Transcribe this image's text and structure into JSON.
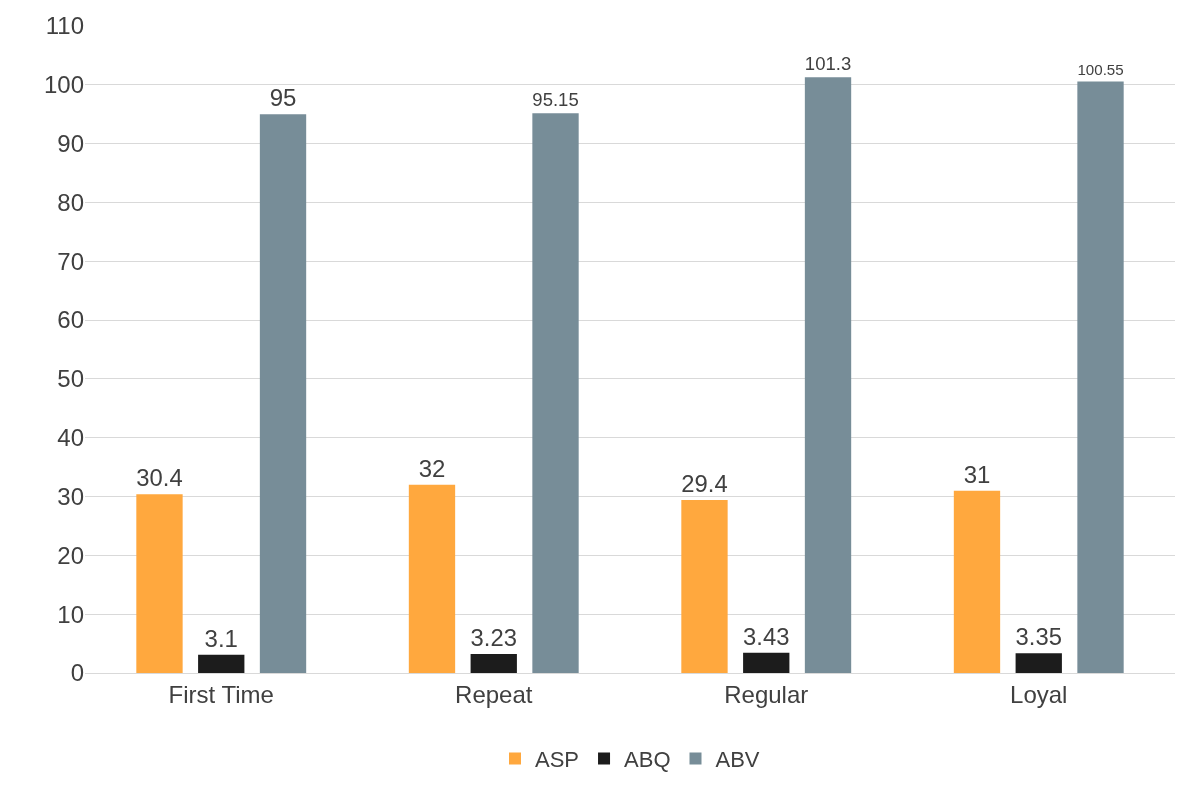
{
  "chart_data": {
    "type": "bar",
    "categories": [
      "First Time",
      "Repeat",
      "Regular",
      "Loyal"
    ],
    "series": [
      {
        "name": "ASP",
        "color": "#ffa83e",
        "values": [
          30.4,
          32,
          29.4,
          31
        ]
      },
      {
        "name": "ABQ",
        "color": "#1c1c1c",
        "values": [
          3.1,
          3.23,
          3.43,
          3.35
        ]
      },
      {
        "name": "ABV",
        "color": "#778d98",
        "values": [
          95,
          95.15,
          101.3,
          100.55
        ]
      }
    ],
    "ylim": [
      0,
      110
    ],
    "yticks": [
      0,
      10,
      20,
      30,
      40,
      50,
      60,
      70,
      80,
      90,
      100,
      110
    ],
    "grid": "y",
    "legend": "bottom",
    "data_labels": true
  }
}
